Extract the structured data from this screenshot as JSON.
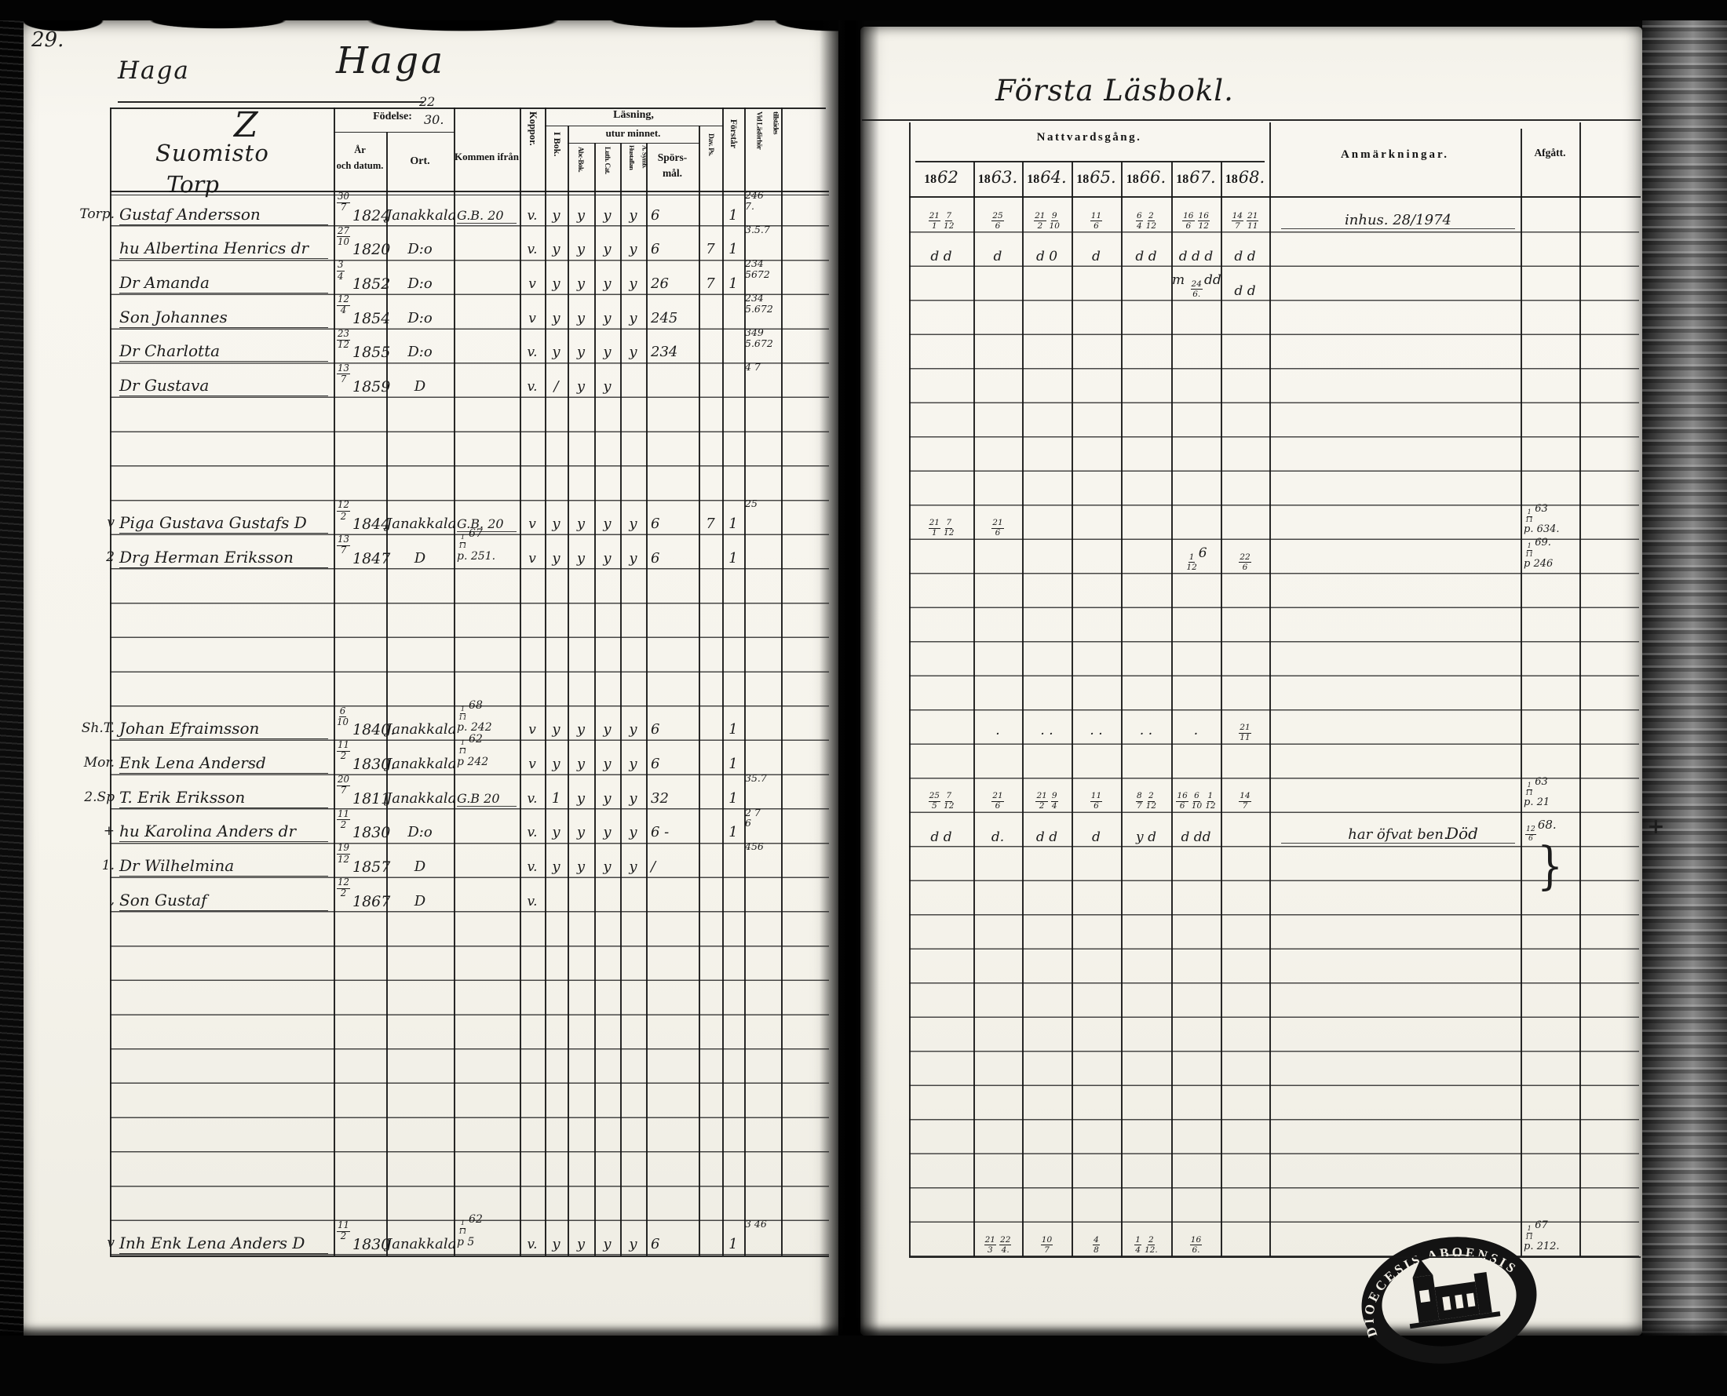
{
  "scan": {
    "page_number": "29.",
    "stamp_text": "DIOECESIS ABOENSIS"
  },
  "left_page": {
    "title_small": "Haga",
    "title_large": "Haga",
    "header": {
      "place1": "Z",
      "place2": "Suomisto",
      "place3": "Torp",
      "fodelse": "Födelse:",
      "fodelse_hand1": "22",
      "fodelse_hand2": "30.",
      "ar_och_datum": "År\noch datum.",
      "ort": "Ort.",
      "kommen": "Kommen ifrån",
      "koppor": "Koppor.",
      "lasning": "Läsning,",
      "utur": "utur minnet.",
      "i_bok": "I Bok.",
      "abc": "Abc-Bok.",
      "luth": "Luth. Cat.",
      "hust": "Hustaflan\nA. Symb.",
      "sporsmal": "Spörs-\nmål.",
      "dav": "Dav. Ps.",
      "forstar": "Förstår",
      "vid": "Vid Läsförhör\ntillstädes"
    },
    "rows": [
      {
        "r": 0,
        "margin": "Torp.",
        "name": "Gustaf Andersson",
        "d": "30/7",
        "y": "1824",
        "ort": "Janakkala",
        "kommen": "G.B. 20",
        "koppor": "v.",
        "marks": [
          "y",
          "y",
          "y",
          "y",
          "6",
          "",
          "1"
        ],
        "vid": "246\n7."
      },
      {
        "r": 1,
        "margin": "",
        "name": "hu Albertina Henrics dr",
        "d": "27/10",
        "y": "1820",
        "ort": "D:o",
        "kommen": "",
        "koppor": "v.",
        "marks": [
          "y",
          "y",
          "y",
          "y",
          "6",
          "7",
          "1"
        ],
        "vid": "3.5.7"
      },
      {
        "r": 2,
        "margin": "",
        "name": "Dr Amanda",
        "d": "3/4",
        "y": "1852",
        "ort": "D:o",
        "kommen": "",
        "koppor": "v",
        "marks": [
          "y",
          "y",
          "y",
          "y",
          "26",
          "7",
          "1"
        ],
        "vid": "234\n5672"
      },
      {
        "r": 3,
        "margin": "",
        "name": "Son Johannes",
        "d": "12/4",
        "y": "1854",
        "ort": "D:o",
        "kommen": "",
        "koppor": "v",
        "marks": [
          "y",
          "y",
          "y",
          "y",
          "245",
          "",
          ""
        ],
        "vid": "234\n5.672"
      },
      {
        "r": 4,
        "margin": "",
        "name": "Dr Charlotta",
        "d": "23/12",
        "y": "1855",
        "ort": "D:o",
        "kommen": "",
        "koppor": "v.",
        "marks": [
          "y",
          "y",
          "y",
          "y",
          "234",
          "",
          ""
        ],
        "vid": "349\n5.672"
      },
      {
        "r": 5,
        "margin": "",
        "name": "Dr Gustava",
        "d": "13/7",
        "y": "1859",
        "ort": "D",
        "kommen": "",
        "koppor": "v.",
        "marks": [
          "/",
          "y",
          "y",
          "",
          "",
          "",
          ""
        ],
        "vid": "4 7"
      },
      {
        "r": 9,
        "margin": "v",
        "name": "Piga Gustava Gustafs D",
        "d": "12/2",
        "y": "1844",
        "ort": "Janakkala",
        "kommen": "G.B. 20",
        "koppor": "v",
        "marks": [
          "y",
          "y",
          "y",
          "y",
          "6",
          "7",
          "1"
        ],
        "vid": "25"
      },
      {
        "r": 10,
        "margin": "2",
        "name": "Drg Herman Eriksson",
        "d": "13/7",
        "y": "1847",
        "ort": "D",
        "kommen": "1/11 67\np. 251.",
        "koppor": "v",
        "marks": [
          "y",
          "y",
          "y",
          "y",
          "6",
          "",
          "1"
        ],
        "vid": ""
      },
      {
        "r": 15,
        "margin": "Sh.T.",
        "name": "Johan Efraimsson",
        "d": "6/10",
        "y": "1840.",
        "ort": "Janakkala",
        "kommen": "1/11 68\np. 242",
        "koppor": "v",
        "marks": [
          "y",
          "y",
          "y",
          "y",
          "6",
          "",
          "1"
        ],
        "vid": ""
      },
      {
        "r": 16,
        "margin": "Mor.",
        "name": "Enk Lena Andersd",
        "d": "11/2",
        "y": "1830.",
        "ort": "Janakkala",
        "kommen": "1/11 62\np 242",
        "koppor": "v",
        "marks": [
          "y",
          "y",
          "y",
          "y",
          "6",
          "",
          "1"
        ],
        "vid": ""
      },
      {
        "r": 17,
        "margin": "2.Sp",
        "name": "T. Erik Eriksson",
        "d": "20/7",
        "y": "1811",
        "ort": "Janakkala",
        "kommen": "G.B 20",
        "koppor": "v.",
        "marks": [
          "1",
          "y",
          "y",
          "y",
          "32",
          "",
          "1"
        ],
        "vid": "35.7"
      },
      {
        "r": 18,
        "margin": "+",
        "name": "hu Karolina Anders dr",
        "d": "11/2",
        "y": "1830",
        "ort": "D:o",
        "kommen": "",
        "koppor": "v.",
        "marks": [
          "y",
          "y",
          "y",
          "y",
          "6 -",
          "",
          "1"
        ],
        "vid": "2 7\n6"
      },
      {
        "r": 19,
        "margin": "1.",
        "name": "Dr Wilhelmina",
        "d": "19/12",
        "y": "1857",
        "ort": "D",
        "kommen": "",
        "koppor": "v.",
        "marks": [
          "y",
          "y",
          "y",
          "y",
          "/",
          "",
          ""
        ],
        "vid": "456"
      },
      {
        "r": 20,
        "margin": ",",
        "name": "Son Gustaf",
        "d": "12/2",
        "y": "1867",
        "ort": "D",
        "kommen": "",
        "koppor": "v.",
        "marks": [
          "",
          "",
          "",
          "",
          "",
          "",
          ""
        ],
        "vid": ""
      },
      {
        "r": 30,
        "margin": "v",
        "name": "Inh Enk Lena Anders D",
        "d": "11/2",
        "y": "1830",
        "ort": "Janakkala",
        "kommen": "1/11 62\np 5",
        "koppor": "v.",
        "marks": [
          "y",
          "y",
          "y",
          "y",
          "6",
          "",
          "1"
        ],
        "vid": "3 46"
      }
    ]
  },
  "right_page": {
    "title": "Första Läsbokl.",
    "header": {
      "nattvardsgang": "Nattvardsgång.",
      "year_prefix": "18",
      "years_hand": [
        "62",
        "63.",
        "64.",
        "65.",
        "66.",
        "67.",
        "68."
      ],
      "anmarkningar": "Anmärkningar.",
      "afgatt": "Afgått."
    },
    "rows": [
      {
        "r": 0,
        "cells": [
          "21/1 7/12",
          "25/6",
          "21/2 9/10",
          "11/6",
          "6/4 2/12",
          "16/6 16/12",
          "14/7 21/11"
        ],
        "anm": "inhus. 28/1974",
        "afgatt": ""
      },
      {
        "r": 1,
        "cells": [
          "d d",
          "d",
          "d 0",
          "d",
          "d d",
          "d d d",
          "d d"
        ],
        "anm": "",
        "afgatt": ""
      },
      {
        "r": 2,
        "cells": [
          "",
          "",
          "",
          "",
          "",
          "m 24/6. dd",
          "d d"
        ],
        "anm": "",
        "afgatt": ""
      },
      {
        "r": 9,
        "cells": [
          "21/1 7/12",
          "21/6",
          "",
          "",
          "",
          "",
          ""
        ],
        "anm": "",
        "afgatt": "1/11 63\np. 634."
      },
      {
        "r": 10,
        "cells": [
          "",
          "",
          "",
          "",
          "",
          "1/12 6",
          "22/6"
        ],
        "anm": "",
        "afgatt": "1/11 69.\np 246"
      },
      {
        "r": 15,
        "cells": [
          "",
          "·",
          "· ·",
          "· ·",
          "· ·",
          "·",
          "21/11"
        ],
        "anm": "",
        "afgatt": ""
      },
      {
        "r": 17,
        "cells": [
          "25/5 7/12",
          "21/6",
          "21/2 9/4",
          "11/6",
          "8/7 2/12",
          "16/6 6/10 1/12",
          "14/7"
        ],
        "anm": "",
        "afgatt": "1/11 63\np. 21"
      },
      {
        "r": 18,
        "cells": [
          "d d",
          "d.",
          "d d",
          "d",
          "y d",
          "d dd",
          ""
        ],
        "anm": "har öfvat ben.",
        "anm2": "Död",
        "afgatt": "12/6 68.",
        "cross": "+"
      },
      {
        "r": 19,
        "cells": [
          "",
          "",
          "",
          "",
          "",
          "",
          ""
        ],
        "anm": "",
        "afgatt": "",
        "brace": "}"
      },
      {
        "r": 30,
        "cells": [
          "",
          "21/3 22/4.",
          "10/7",
          "4/8",
          "1/4 2/12.",
          "16/6.",
          ""
        ],
        "anm": "",
        "afgatt": "1/11 67\np. 212."
      }
    ]
  }
}
